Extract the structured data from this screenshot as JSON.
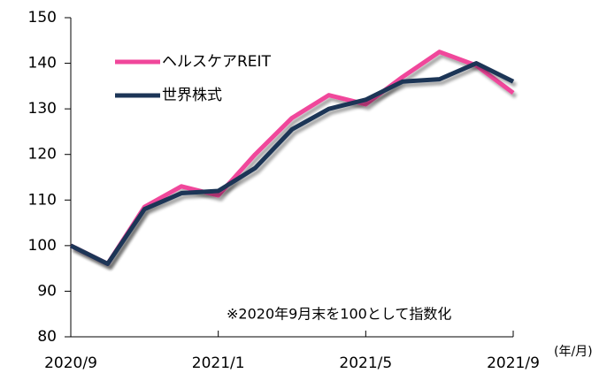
{
  "chart_data": {
    "type": "line",
    "categories": [
      "2020/9",
      null,
      null,
      null,
      "2021/1",
      null,
      null,
      null,
      "2021/5",
      null,
      null,
      null,
      "2021/9"
    ],
    "x_unit_label": "(年/月)",
    "annotation": "※2020年9月末を100として指数化",
    "series": [
      {
        "name": "ヘルスケアREIT",
        "color": "#f0479b",
        "values": [
          100,
          96,
          108.5,
          113,
          111,
          120,
          128,
          133,
          131,
          137,
          142.5,
          139.5,
          133.5
        ]
      },
      {
        "name": "世界株式",
        "color": "#1c3557",
        "values": [
          100,
          96,
          108,
          111.5,
          112,
          117,
          125.5,
          130,
          132,
          136,
          136.5,
          140,
          136
        ]
      }
    ],
    "ylim": [
      80,
      150
    ],
    "yticks": [
      80,
      90,
      100,
      110,
      120,
      130,
      140,
      150
    ],
    "grid": false,
    "legend": "upper left",
    "shadow": true
  }
}
